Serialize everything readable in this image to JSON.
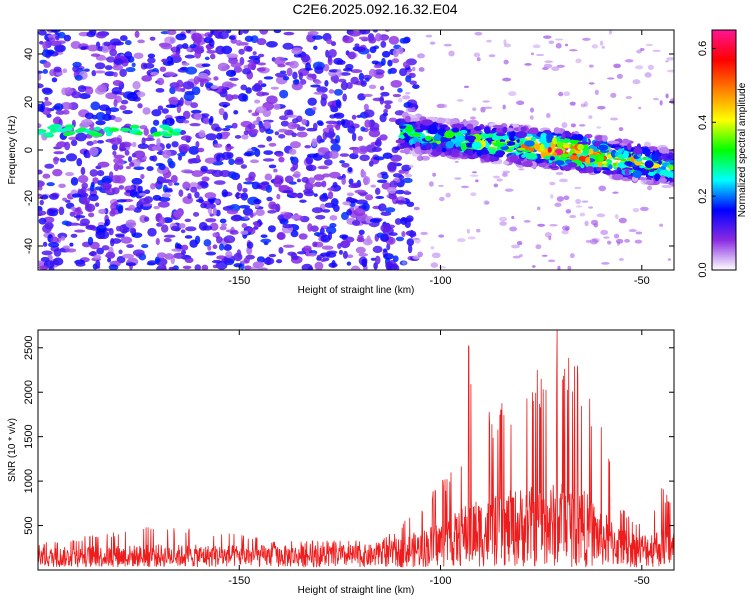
{
  "title": "C2E6.2025.092.16.32.E04",
  "chart_data": [
    {
      "type": "heatmap",
      "xlabel": "Height of straight line (km)",
      "ylabel": "Frequency (Hz)",
      "xlim": [
        -200,
        -42
      ],
      "ylim": [
        -50,
        50
      ],
      "xticks": [
        -150,
        -100,
        -50
      ],
      "yticks": [
        -40,
        -20,
        0,
        20,
        40
      ],
      "colorbar": {
        "label": "Normalized spectral amplitude",
        "range": [
          0,
          0.65
        ],
        "ticks": [
          "0.0",
          "0.2",
          "0.4",
          "0.6"
        ],
        "colors": [
          "#ffffff",
          "#8a2be2",
          "#0000ff",
          "#00ffff",
          "#00ff00",
          "#ffff00",
          "#ff8000",
          "#ff0000",
          "#ff1493"
        ]
      },
      "features": {
        "noise_region_x": [
          -200,
          -110
        ],
        "noise_level": 0.15,
        "signal_band": [
          {
            "x": -110,
            "freq": 7,
            "amp": 0.3
          },
          {
            "x": -100,
            "freq": 5,
            "amp": 0.32
          },
          {
            "x": -90,
            "freq": 3,
            "amp": 0.35
          },
          {
            "x": -80,
            "freq": 2,
            "amp": 0.4
          },
          {
            "x": -70,
            "freq": 0,
            "amp": 0.6
          },
          {
            "x": -60,
            "freq": -3,
            "amp": 0.5
          },
          {
            "x": -50,
            "freq": -5,
            "amp": 0.4
          },
          {
            "x": -42,
            "freq": -8,
            "amp": 0.3
          }
        ],
        "weak_line_x": [
          -200,
          -165
        ],
        "weak_line_freq": 8
      }
    },
    {
      "type": "line",
      "xlabel": "Height of straight line (km)",
      "ylabel": "SNR (10 * v/v)",
      "xlim": [
        -200,
        -42
      ],
      "ylim": [
        0,
        2700
      ],
      "xticks": [
        -150,
        -100,
        -50
      ],
      "yticks": [
        500,
        1000,
        1500,
        2000,
        2500
      ],
      "color": "#ee1c1c",
      "envelope": [
        {
          "x": -200,
          "base": 170,
          "peak": 300
        },
        {
          "x": -170,
          "base": 200,
          "peak": 520
        },
        {
          "x": -140,
          "base": 190,
          "peak": 340
        },
        {
          "x": -115,
          "base": 200,
          "peak": 330
        },
        {
          "x": -105,
          "base": 320,
          "peak": 700
        },
        {
          "x": -95,
          "base": 500,
          "peak": 1300
        },
        {
          "x": -93,
          "base": 600,
          "peak": 2520
        },
        {
          "x": -88,
          "base": 600,
          "peak": 1800
        },
        {
          "x": -80,
          "base": 700,
          "peak": 2000
        },
        {
          "x": -75,
          "base": 700,
          "peak": 2200
        },
        {
          "x": -70,
          "base": 750,
          "peak": 2700
        },
        {
          "x": -65,
          "base": 700,
          "peak": 2250
        },
        {
          "x": -60,
          "base": 500,
          "peak": 1600
        },
        {
          "x": -55,
          "base": 350,
          "peak": 700
        },
        {
          "x": -50,
          "base": 300,
          "peak": 500
        },
        {
          "x": -45,
          "base": 350,
          "peak": 950
        },
        {
          "x": -42,
          "base": 350,
          "peak": 800
        }
      ],
      "peaks": [
        {
          "x": -93,
          "y": 2520
        },
        {
          "x": -71,
          "y": 2700
        },
        {
          "x": -76,
          "y": 2250
        },
        {
          "x": -66,
          "y": 2300
        },
        {
          "x": -85,
          "y": 1800
        }
      ]
    }
  ]
}
